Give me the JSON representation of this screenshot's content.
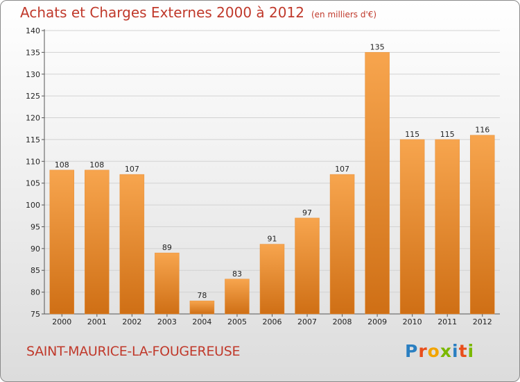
{
  "chart_data": {
    "type": "bar",
    "title": "Achats et Charges Externes 2000 à 2012",
    "unit_label": "(en milliers d'€)",
    "categories": [
      "2000",
      "2001",
      "2002",
      "2003",
      "2004",
      "2005",
      "2006",
      "2007",
      "2008",
      "2009",
      "2010",
      "2011",
      "2012"
    ],
    "values": [
      108,
      108,
      107,
      89,
      78,
      83,
      91,
      97,
      107,
      135,
      115,
      115,
      116
    ],
    "ylim": [
      75,
      140
    ],
    "yticks": [
      75,
      80,
      85,
      90,
      95,
      100,
      105,
      110,
      115,
      120,
      125,
      130,
      135,
      140
    ],
    "grid": true,
    "bar_color_top": "#f7a54e",
    "bar_color_bottom": "#cf6f15"
  },
  "footer": {
    "commune": "SAINT-MAURICE-LA-FOUGEREUSE",
    "logo_letters": [
      "P",
      "r",
      "o",
      "x",
      "i",
      "t",
      "i"
    ],
    "logo_colors": [
      "#2a7fc1",
      "#e94e1b",
      "#f2a400",
      "#7ab800",
      "#2a7fc1",
      "#e94e1b",
      "#7ab800"
    ]
  }
}
